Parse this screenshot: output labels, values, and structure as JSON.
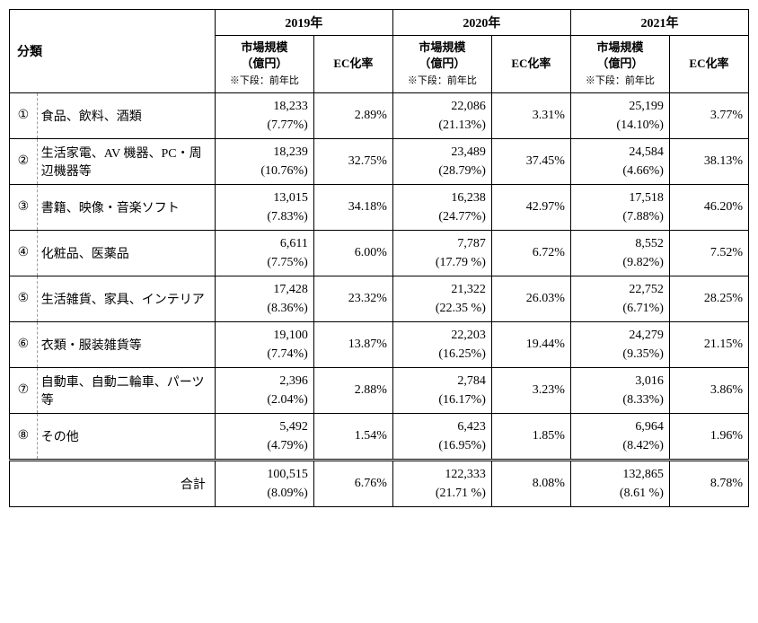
{
  "headers": {
    "category": "分類",
    "years": [
      "2019年",
      "2020年",
      "2021年"
    ],
    "market_size": "市場規模",
    "market_unit": "（億円）",
    "market_note": "※下段：前年比",
    "ec_rate": "EC化率",
    "total": "合計"
  },
  "circled": [
    "①",
    "②",
    "③",
    "④",
    "⑤",
    "⑥",
    "⑦",
    "⑧"
  ],
  "rows": [
    {
      "name": "食品、飲料、酒類",
      "y2019": {
        "size": "18,233",
        "yoy": "(7.77%)",
        "ec": "2.89%"
      },
      "y2020": {
        "size": "22,086",
        "yoy": "(21.13%)",
        "ec": "3.31%"
      },
      "y2021": {
        "size": "25,199",
        "yoy": "(14.10%)",
        "ec": "3.77%"
      }
    },
    {
      "name": "生活家電、AV 機器、PC・周辺機器等",
      "y2019": {
        "size": "18,239",
        "yoy": "(10.76%)",
        "ec": "32.75%"
      },
      "y2020": {
        "size": "23,489",
        "yoy": "(28.79%)",
        "ec": "37.45%"
      },
      "y2021": {
        "size": "24,584",
        "yoy": "(4.66%)",
        "ec": "38.13%"
      }
    },
    {
      "name": "書籍、映像・音楽ソフト",
      "y2019": {
        "size": "13,015",
        "yoy": "(7.83%)",
        "ec": "34.18%"
      },
      "y2020": {
        "size": "16,238",
        "yoy": "(24.77%)",
        "ec": "42.97%"
      },
      "y2021": {
        "size": "17,518",
        "yoy": "(7.88%)",
        "ec": "46.20%"
      }
    },
    {
      "name": "化粧品、医薬品",
      "y2019": {
        "size": "6,611",
        "yoy": "(7.75%)",
        "ec": "6.00%"
      },
      "y2020": {
        "size": "7,787",
        "yoy": "(17.79 %)",
        "ec": "6.72%"
      },
      "y2021": {
        "size": "8,552",
        "yoy": "(9.82%)",
        "ec": "7.52%"
      }
    },
    {
      "name": "生活雑貨、家具、インテリア",
      "y2019": {
        "size": "17,428",
        "yoy": "(8.36%)",
        "ec": "23.32%"
      },
      "y2020": {
        "size": "21,322",
        "yoy": "(22.35 %)",
        "ec": "26.03%"
      },
      "y2021": {
        "size": "22,752",
        "yoy": "(6.71%)",
        "ec": "28.25%"
      }
    },
    {
      "name": "衣類・服装雑貨等",
      "y2019": {
        "size": "19,100",
        "yoy": "(7.74%)",
        "ec": "13.87%"
      },
      "y2020": {
        "size": "22,203",
        "yoy": "(16.25%)",
        "ec": "19.44%"
      },
      "y2021": {
        "size": "24,279",
        "yoy": "(9.35%)",
        "ec": "21.15%"
      }
    },
    {
      "name": "自動車、自動二輪車、パーツ等",
      "y2019": {
        "size": "2,396",
        "yoy": "(2.04%)",
        "ec": "2.88%"
      },
      "y2020": {
        "size": "2,784",
        "yoy": "(16.17%)",
        "ec": "3.23%"
      },
      "y2021": {
        "size": "3,016",
        "yoy": "(8.33%)",
        "ec": "3.86%"
      }
    },
    {
      "name": "その他",
      "y2019": {
        "size": "5,492",
        "yoy": "(4.79%)",
        "ec": "1.54%"
      },
      "y2020": {
        "size": "6,423",
        "yoy": "(16.95%)",
        "ec": "1.85%"
      },
      "y2021": {
        "size": "6,964",
        "yoy": "(8.42%)",
        "ec": "1.96%"
      }
    }
  ],
  "total": {
    "y2019": {
      "size": "100,515",
      "yoy": "(8.09%)",
      "ec": "6.76%"
    },
    "y2020": {
      "size": "122,333",
      "yoy": "(21.71 %)",
      "ec": "8.08%"
    },
    "y2021": {
      "size": "132,865",
      "yoy": "(8.61 %)",
      "ec": "8.78%"
    }
  },
  "col_widths": {
    "num": 28,
    "name": 180,
    "size": 100,
    "ec": 80
  },
  "colors": {
    "border": "#000000",
    "dashed": "#999999",
    "bg": "#ffffff",
    "text": "#000000"
  }
}
